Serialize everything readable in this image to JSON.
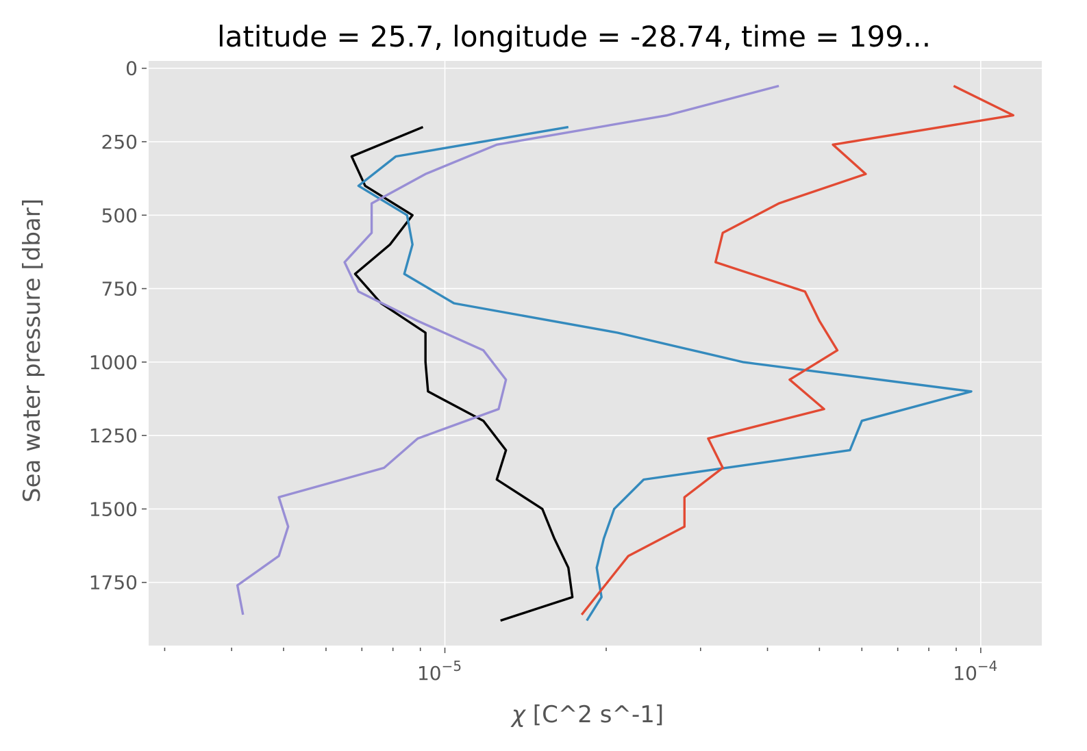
{
  "chart_data": {
    "type": "line",
    "title": "latitude = 25.7, longitude = -28.74, time = 199...",
    "xlabel_prefix": "χ",
    "xlabel_unit": " [C^2 s^-1]",
    "ylabel": "Sea water pressure [dbar]",
    "xscale": "log",
    "xlim": [
      2.8e-06,
      0.00013
    ],
    "ylim": [
      1965,
      -25
    ],
    "y_inverted": true,
    "grid": true,
    "legend": "none",
    "y_ticks": [
      0,
      250,
      500,
      750,
      1000,
      1250,
      1500,
      1750
    ],
    "y_tick_labels": [
      "0",
      "250",
      "500",
      "750",
      "1000",
      "1250",
      "1500",
      "1750"
    ],
    "x_major_ticks": [
      1e-05,
      0.0001
    ],
    "x_major_tick_labels": [
      {
        "base": "10",
        "exp": "−5"
      },
      {
        "base": "10",
        "exp": "−4"
      }
    ],
    "x_minor_ticks": [
      3e-06,
      4e-06,
      5e-06,
      6e-06,
      7e-06,
      8e-06,
      9e-06,
      2e-05,
      3e-05,
      4e-05,
      5e-05,
      6e-05,
      7e-05,
      8e-05,
      9e-05
    ],
    "series": [
      {
        "color": "#000000",
        "x": [
          9.1e-06,
          6.7e-06,
          7.1e-06,
          8.7e-06,
          7.9e-06,
          6.8e-06,
          7.6e-06,
          9.2e-06,
          9.2e-06,
          9.3e-06,
          1.18e-05,
          1.3e-05,
          1.25e-05,
          1.52e-05,
          1.6e-05,
          1.7e-05,
          1.73e-05,
          1.27e-05
        ],
        "y": [
          200,
          300,
          400,
          500,
          600,
          700,
          800,
          900,
          1000,
          1100,
          1200,
          1300,
          1400,
          1500,
          1600,
          1700,
          1800,
          1880
        ]
      },
      {
        "color": "#348ABD",
        "x": [
          1.7e-05,
          8.1e-06,
          6.9e-06,
          8.5e-06,
          8.7e-06,
          8.4e-06,
          1.04e-05,
          2.1e-05,
          3.6e-05,
          9.6e-05,
          6e-05,
          5.7e-05,
          2.35e-05,
          2.07e-05,
          1.98e-05,
          1.92e-05,
          1.96e-05,
          1.84e-05
        ],
        "y": [
          200,
          300,
          400,
          500,
          600,
          700,
          800,
          900,
          1000,
          1100,
          1200,
          1300,
          1400,
          1500,
          1600,
          1700,
          1800,
          1880
        ]
      },
      {
        "color": "#988ED5",
        "x": [
          4.2e-05,
          2.6e-05,
          1.25e-05,
          9.2e-06,
          7.3e-06,
          7.3e-06,
          6.5e-06,
          6.9e-06,
          8.9e-06,
          1.18e-05,
          1.3e-05,
          1.26e-05,
          8.9e-06,
          7.7e-06,
          4.9e-06,
          5.1e-06,
          4.9e-06,
          4.1e-06,
          4.2e-06
        ],
        "y": [
          60,
          160,
          260,
          360,
          460,
          560,
          660,
          760,
          860,
          960,
          1060,
          1160,
          1260,
          1360,
          1460,
          1560,
          1660,
          1760,
          1860
        ]
      },
      {
        "color": "#E24A33",
        "x": [
          8.9e-05,
          0.000115,
          5.3e-05,
          6.1e-05,
          4.2e-05,
          3.3e-05,
          3.2e-05,
          4.7e-05,
          5e-05,
          5.4e-05,
          4.4e-05,
          5.1e-05,
          3.1e-05,
          3.3e-05,
          2.8e-05,
          2.8e-05,
          2.2e-05,
          1.8e-05
        ],
        "y": [
          60,
          160,
          260,
          360,
          460,
          560,
          660,
          760,
          860,
          960,
          1060,
          1160,
          1260,
          1360,
          1460,
          1560,
          1660,
          1860
        ]
      }
    ]
  }
}
